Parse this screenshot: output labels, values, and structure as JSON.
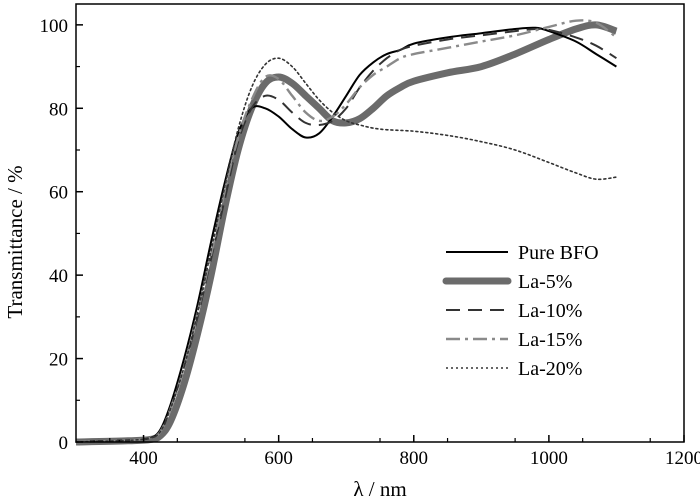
{
  "chart_data": {
    "type": "line",
    "title": "",
    "xlabel": "λ / nm",
    "ylabel": "Transmittance / %",
    "xlim": [
      300,
      1200
    ],
    "ylim": [
      0,
      105
    ],
    "xticks": [
      400,
      600,
      800,
      1000,
      1200
    ],
    "yticks": [
      0,
      20,
      40,
      60,
      80,
      100
    ],
    "grid": false,
    "legend_position": "right",
    "series": [
      {
        "name": "Pure BFO",
        "style": "solid",
        "color": "#000000",
        "points": [
          [
            300,
            0
          ],
          [
            380,
            0.4
          ],
          [
            410,
            1
          ],
          [
            425,
            3
          ],
          [
            440,
            9
          ],
          [
            460,
            20
          ],
          [
            480,
            33
          ],
          [
            500,
            48
          ],
          [
            520,
            62
          ],
          [
            540,
            74
          ],
          [
            560,
            80
          ],
          [
            580,
            80
          ],
          [
            600,
            78
          ],
          [
            620,
            75
          ],
          [
            640,
            73
          ],
          [
            660,
            74
          ],
          [
            680,
            78
          ],
          [
            700,
            83
          ],
          [
            720,
            88
          ],
          [
            740,
            91
          ],
          [
            760,
            93
          ],
          [
            780,
            94
          ],
          [
            800,
            95.5
          ],
          [
            850,
            97
          ],
          [
            900,
            98
          ],
          [
            950,
            99
          ],
          [
            980,
            99.3
          ],
          [
            1000,
            98.5
          ],
          [
            1040,
            96
          ],
          [
            1070,
            93
          ],
          [
            1100,
            90
          ]
        ]
      },
      {
        "name": "La-5%",
        "style": "thick",
        "color": "#6b6b6b",
        "points": [
          [
            300,
            0
          ],
          [
            380,
            0.3
          ],
          [
            410,
            0.6
          ],
          [
            425,
            1.5
          ],
          [
            440,
            5
          ],
          [
            460,
            14
          ],
          [
            480,
            26
          ],
          [
            500,
            40
          ],
          [
            520,
            56
          ],
          [
            540,
            70
          ],
          [
            560,
            80
          ],
          [
            580,
            86
          ],
          [
            600,
            87.5
          ],
          [
            620,
            86
          ],
          [
            640,
            83
          ],
          [
            660,
            80
          ],
          [
            680,
            77
          ],
          [
            700,
            76.5
          ],
          [
            720,
            77.5
          ],
          [
            740,
            80
          ],
          [
            760,
            83
          ],
          [
            780,
            85
          ],
          [
            800,
            86.5
          ],
          [
            850,
            88.5
          ],
          [
            900,
            90
          ],
          [
            950,
            93
          ],
          [
            1000,
            96.5
          ],
          [
            1040,
            99
          ],
          [
            1070,
            100
          ],
          [
            1100,
            98.5
          ]
        ]
      },
      {
        "name": "La-10%",
        "style": "dash",
        "color": "#333333",
        "points": [
          [
            300,
            0
          ],
          [
            380,
            0.4
          ],
          [
            410,
            1
          ],
          [
            425,
            2.5
          ],
          [
            440,
            8
          ],
          [
            460,
            18
          ],
          [
            480,
            30
          ],
          [
            500,
            44
          ],
          [
            520,
            58
          ],
          [
            540,
            72
          ],
          [
            560,
            80
          ],
          [
            580,
            83
          ],
          [
            600,
            82
          ],
          [
            620,
            79
          ],
          [
            640,
            76.5
          ],
          [
            660,
            76
          ],
          [
            680,
            77
          ],
          [
            700,
            80
          ],
          [
            720,
            85
          ],
          [
            740,
            89
          ],
          [
            760,
            92
          ],
          [
            780,
            94
          ],
          [
            800,
            95
          ],
          [
            850,
            96.5
          ],
          [
            900,
            97.5
          ],
          [
            950,
            98.5
          ],
          [
            980,
            99
          ],
          [
            1000,
            98.8
          ],
          [
            1040,
            97
          ],
          [
            1070,
            95
          ],
          [
            1100,
            92
          ]
        ]
      },
      {
        "name": "La-15%",
        "style": "dashdot",
        "color": "#8a8a8a",
        "points": [
          [
            300,
            0
          ],
          [
            380,
            0.4
          ],
          [
            410,
            1
          ],
          [
            425,
            2.5
          ],
          [
            440,
            8
          ],
          [
            460,
            18
          ],
          [
            480,
            31
          ],
          [
            500,
            45
          ],
          [
            520,
            60
          ],
          [
            540,
            73
          ],
          [
            560,
            82
          ],
          [
            580,
            87.5
          ],
          [
            600,
            87
          ],
          [
            620,
            83
          ],
          [
            640,
            79
          ],
          [
            660,
            77
          ],
          [
            680,
            78
          ],
          [
            700,
            81
          ],
          [
            720,
            85
          ],
          [
            740,
            88
          ],
          [
            760,
            90
          ],
          [
            780,
            92
          ],
          [
            800,
            93
          ],
          [
            850,
            94.5
          ],
          [
            900,
            96
          ],
          [
            950,
            97.5
          ],
          [
            1000,
            99.5
          ],
          [
            1040,
            101
          ],
          [
            1070,
            100.5
          ],
          [
            1100,
            97
          ]
        ]
      },
      {
        "name": "La-20%",
        "style": "dot",
        "color": "#333333",
        "points": [
          [
            300,
            0
          ],
          [
            380,
            0.4
          ],
          [
            410,
            1
          ],
          [
            425,
            2.5
          ],
          [
            440,
            8
          ],
          [
            460,
            18
          ],
          [
            480,
            31
          ],
          [
            500,
            46
          ],
          [
            520,
            61
          ],
          [
            540,
            75
          ],
          [
            560,
            85
          ],
          [
            580,
            90.5
          ],
          [
            600,
            92
          ],
          [
            620,
            90
          ],
          [
            640,
            86
          ],
          [
            660,
            82
          ],
          [
            680,
            79
          ],
          [
            700,
            77
          ],
          [
            720,
            76
          ],
          [
            750,
            75
          ],
          [
            800,
            74.5
          ],
          [
            850,
            73.5
          ],
          [
            900,
            72
          ],
          [
            950,
            70
          ],
          [
            1000,
            67
          ],
          [
            1040,
            64.5
          ],
          [
            1070,
            63
          ],
          [
            1100,
            63.5
          ]
        ]
      }
    ]
  }
}
